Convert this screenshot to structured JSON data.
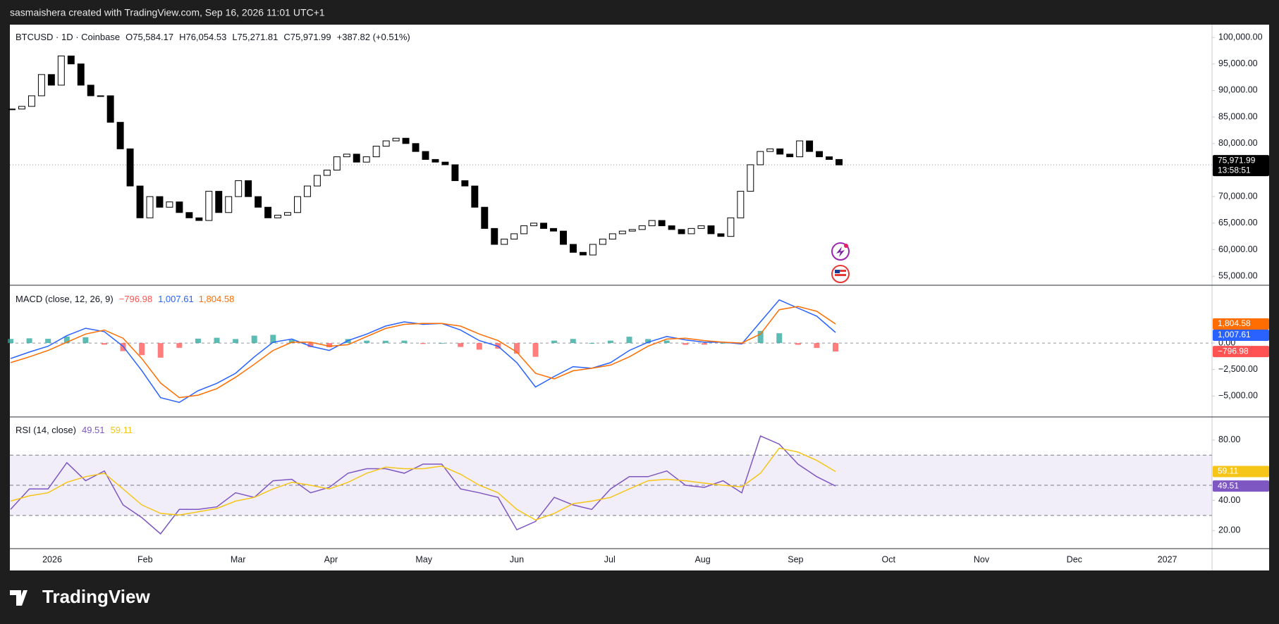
{
  "header": {
    "caption": "sasmaishera created with TradingView.com, Sep 16, 2026 11:01 UTC+1"
  },
  "footer": {
    "logo": "TradingView"
  },
  "time_axis": {
    "labels": [
      "2026",
      "Feb",
      "Mar",
      "Apr",
      "May",
      "Jun",
      "Jul",
      "Aug",
      "Sep",
      "Oct",
      "Nov",
      "Dec",
      "2027"
    ]
  },
  "chart_data": [
    {
      "type": "candlestick",
      "symbol": "BTCUSD · 1D · Coinbase",
      "ohlc": [
        {
          "key": "O",
          "value": "75,584.17"
        },
        {
          "key": "H",
          "value": "76,054.53"
        },
        {
          "key": "L",
          "value": "75,271.81"
        },
        {
          "key": "C",
          "value": "75,971.99"
        }
      ],
      "change": "+387.82 (+0.51%)",
      "countdown": "13:58:51",
      "up_color": "#ffffff",
      "down_color": "#000000",
      "color": "#000000",
      "values": [
        86500,
        87000,
        89000,
        93000,
        91000,
        96500,
        95000,
        91000,
        89000,
        89000,
        84000,
        79000,
        72000,
        66000,
        70000,
        68000,
        69000,
        67000,
        66000,
        65500,
        71000,
        67000,
        70000,
        73000,
        70000,
        68000,
        66000,
        66500,
        67000,
        70000,
        72000,
        74000,
        75000,
        77500,
        78000,
        76500,
        77500,
        79500,
        80500,
        81000,
        80000,
        78500,
        77000,
        76500,
        76000,
        73000,
        72000,
        68000,
        64000,
        61000,
        62000,
        63000,
        64500,
        65000,
        64000,
        63500,
        61000,
        59500,
        59000,
        61000,
        62000,
        63000,
        63500,
        63800,
        64500,
        65500,
        64500,
        63800,
        63000,
        64000,
        64500,
        63000,
        62500,
        66000,
        71000,
        76000,
        78500,
        79000,
        78000,
        77500,
        80500,
        78500,
        77500,
        77000,
        75971.99
      ],
      "ylim": [
        53300,
        102400
      ],
      "yticks": [
        {
          "value": 55000,
          "label": "55,000.00"
        },
        {
          "value": 60000,
          "label": "60,000.00"
        },
        {
          "value": 65000,
          "label": "65,000.00"
        },
        {
          "value": 70000,
          "label": "70,000.00"
        },
        {
          "value": 75000,
          "label": "75,000.00"
        },
        {
          "value": 80000,
          "label": "80,000.00"
        },
        {
          "value": 85000,
          "label": "85,000.00"
        },
        {
          "value": 90000,
          "label": "90,000.00"
        },
        {
          "value": 95000,
          "label": "95,000.00"
        },
        {
          "value": 100000,
          "label": "100,000.00"
        }
      ],
      "grid": false
    },
    {
      "type": "macd",
      "title": "MACD (close, 12, 26, 9)",
      "series": [
        {
          "kind": "histogram",
          "color": "#26a69a",
          "negative_color": "#ff5252",
          "value_label": "−796.98",
          "values": [
            390,
            450,
            400,
            620,
            550,
            -150,
            -760,
            -1140,
            -1380,
            -450,
            420,
            500,
            380,
            700,
            780,
            300,
            -380,
            -400,
            380,
            230,
            220,
            230,
            -80,
            0,
            -370,
            -620,
            -530,
            -1000,
            -1300,
            230,
            390,
            0,
            230,
            600,
            380,
            240,
            -160,
            -150,
            0,
            -80,
            1150,
            930,
            -160,
            -460,
            -796.98
          ]
        },
        {
          "kind": "line",
          "color": "#2962ff",
          "value_label": "1,007.61",
          "values": [
            -1460,
            -850,
            -300,
            700,
            1400,
            1080,
            -300,
            -2600,
            -5150,
            -5600,
            -4500,
            -3800,
            -2850,
            -1300,
            80,
            380,
            -300,
            -700,
            230,
            850,
            1600,
            2000,
            1770,
            1850,
            1230,
            230,
            -300,
            -1850,
            -4150,
            -3150,
            -2230,
            -2380,
            -1850,
            -700,
            80,
            620,
            300,
            80,
            80,
            -80,
            2000,
            4080,
            3300,
            2540,
            1007.61
          ]
        },
        {
          "kind": "line",
          "color": "#ff6d00",
          "value_label": "1,804.58",
          "values": [
            -1850,
            -1300,
            -700,
            80,
            850,
            1230,
            460,
            -1460,
            -3770,
            -5150,
            -4920,
            -4300,
            -3230,
            -2000,
            -700,
            80,
            80,
            -300,
            -150,
            620,
            1380,
            1770,
            1850,
            1850,
            1600,
            850,
            230,
            -850,
            -2850,
            -3380,
            -2620,
            -2380,
            -2080,
            -1300,
            -300,
            380,
            460,
            230,
            80,
            0,
            850,
            3150,
            3460,
            3000,
            1804.58
          ]
        }
      ],
      "ylim": [
        -6975,
        5460
      ],
      "yticks": [
        {
          "value": 0,
          "label": "0.00"
        },
        {
          "value": -2500,
          "label": "−2,500.00"
        },
        {
          "value": -5000,
          "label": "−5,000.00"
        }
      ],
      "zero_line": true
    },
    {
      "type": "rsi",
      "title": "RSI (14, close)",
      "series": [
        {
          "kind": "line",
          "color": "#7e57c2",
          "value_label": "49.51",
          "values": [
            34,
            47.6,
            47.6,
            65,
            53,
            59.5,
            37,
            28.6,
            17.8,
            34,
            34,
            35.7,
            45,
            42,
            53,
            54,
            45,
            48.6,
            58,
            61,
            61,
            58,
            64,
            64,
            47.6,
            45,
            42,
            20.5,
            26,
            42,
            37,
            34,
            47.6,
            55.7,
            55.7,
            59.5,
            50,
            48.6,
            53,
            45,
            82.7,
            77.3,
            64,
            55.7,
            49.51
          ]
        },
        {
          "kind": "line",
          "color": "#f5c518",
          "value_label": "59.11",
          "values": [
            39.5,
            43,
            45,
            52,
            55.7,
            58,
            47.6,
            37,
            31.4,
            30.3,
            32.4,
            34.6,
            39.5,
            42,
            47.6,
            52,
            50,
            47.6,
            52,
            58,
            62,
            61,
            61,
            62.7,
            57.3,
            50,
            45,
            34,
            27,
            31.4,
            37.8,
            39.5,
            42,
            47.6,
            53,
            54,
            53,
            51.4,
            50,
            49,
            58,
            74.6,
            72,
            66.5,
            59.11
          ]
        }
      ],
      "levels": [
        70,
        50,
        30
      ],
      "band_color": "#7e57c2",
      "ylim": [
        8,
        95.3
      ],
      "yticks": [
        {
          "value": 20,
          "label": "20.00"
        },
        {
          "value": 40,
          "label": "40.00"
        },
        {
          "value": 80,
          "label": "80.00"
        }
      ]
    }
  ]
}
